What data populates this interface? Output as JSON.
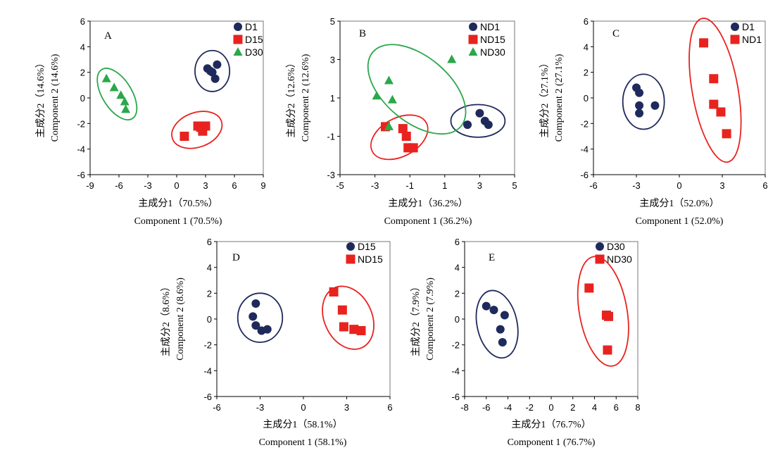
{
  "colors": {
    "circle": "#1f2a5c",
    "square": "#e8231f",
    "triangle": "#2aa84a",
    "ellipse_navy": "#1f2a5c",
    "ellipse_red": "#e8231f",
    "ellipse_green": "#2aa84a"
  },
  "chart_data": [
    {
      "type": "scatter",
      "panel_label": "A",
      "xlabel_cn": "主成分1（70.5%）",
      "xlabel_en": "Component 1 (70.5%)",
      "ylabel_cn": "主成分2（14.6%）",
      "ylabel_en": "Component 2 (14.6%)",
      "xlim": [
        -9,
        9
      ],
      "ylim": [
        -6,
        6
      ],
      "xticks": [
        "-9",
        "-6",
        "-3",
        "0",
        "3",
        "6",
        "9"
      ],
      "yticks": [
        "-6",
        "-4",
        "-2",
        "0",
        "2",
        "4",
        "6"
      ],
      "legend_position": "top-right",
      "series": [
        {
          "name": "D1",
          "marker": "circle",
          "points": [
            [
              3.2,
              2.3
            ],
            [
              3.7,
              2.0
            ],
            [
              4.2,
              2.6
            ],
            [
              4.0,
              1.5
            ],
            [
              3.5,
              2.1
            ]
          ]
        },
        {
          "name": "D15",
          "marker": "square",
          "points": [
            [
              0.8,
              -3.0
            ],
            [
              2.2,
              -2.2
            ],
            [
              2.7,
              -2.6
            ],
            [
              3.0,
              -2.2
            ],
            [
              2.5,
              -2.3
            ]
          ]
        },
        {
          "name": "D30",
          "marker": "triangle",
          "points": [
            [
              -7.3,
              1.5
            ],
            [
              -6.5,
              0.8
            ],
            [
              -5.8,
              0.2
            ],
            [
              -5.4,
              -0.3
            ],
            [
              -5.3,
              -0.9
            ]
          ]
        }
      ],
      "ellipses": [
        {
          "color": "navy",
          "cx": 3.7,
          "cy": 2.1,
          "rx": 1.8,
          "ry": 1.6,
          "angle": 0
        },
        {
          "color": "red",
          "cx": 2.1,
          "cy": -2.5,
          "rx": 2.7,
          "ry": 1.35,
          "angle": -20
        },
        {
          "color": "green",
          "cx": -6.2,
          "cy": 0.3,
          "rx": 3.0,
          "ry": 1.15,
          "angle": 58
        }
      ]
    },
    {
      "type": "scatter",
      "panel_label": "B",
      "xlabel_cn": "主成分1（36.2%）",
      "xlabel_en": "Component 1 (36.2%)",
      "ylabel_cn": "主成分2（12.6%）",
      "ylabel_en": "Component 2 (12.6%)",
      "xlim": [
        -5,
        5
      ],
      "ylim": [
        -3,
        5
      ],
      "xticks": [
        "-5",
        "-3",
        "-1",
        "1",
        "3",
        "5"
      ],
      "yticks": [
        "-3",
        "-1",
        "1",
        "3",
        "5"
      ],
      "legend_position": "top-right",
      "series": [
        {
          "name": "ND1",
          "marker": "circle",
          "points": [
            [
              2.3,
              -0.4
            ],
            [
              3.0,
              0.2
            ],
            [
              3.3,
              -0.2
            ],
            [
              3.5,
              -0.4
            ]
          ]
        },
        {
          "name": "ND15",
          "marker": "square",
          "points": [
            [
              -2.4,
              -0.5
            ],
            [
              -1.4,
              -0.6
            ],
            [
              -1.2,
              -1.0
            ],
            [
              -1.1,
              -1.6
            ],
            [
              -0.8,
              -1.6
            ]
          ]
        },
        {
          "name": "ND30",
          "marker": "triangle",
          "points": [
            [
              -2.2,
              1.9
            ],
            [
              -2.9,
              1.1
            ],
            [
              -2.0,
              0.9
            ],
            [
              -2.2,
              -0.5
            ],
            [
              1.4,
              3.0
            ]
          ]
        }
      ],
      "ellipses": [
        {
          "color": "navy",
          "cx": 2.9,
          "cy": -0.2,
          "rx": 1.55,
          "ry": 0.85,
          "angle": 0
        },
        {
          "color": "red",
          "cx": -1.6,
          "cy": -1.05,
          "rx": 1.75,
          "ry": 1.0,
          "angle": -28
        },
        {
          "color": "green",
          "cx": -0.6,
          "cy": 1.45,
          "rx": 3.3,
          "ry": 1.7,
          "angle": 40
        }
      ]
    },
    {
      "type": "scatter",
      "panel_label": "C",
      "xlabel_cn": "主成分1（52.0%）",
      "xlabel_en": "Component 1 (52.0%)",
      "ylabel_cn": "主成分2（27.1%）",
      "ylabel_en": "Component 2 (27.1%)",
      "xlim": [
        -6,
        6
      ],
      "ylim": [
        -6,
        6
      ],
      "xticks": [
        "-6",
        "-3",
        "0",
        "3",
        "6"
      ],
      "yticks": [
        "-6",
        "-4",
        "-2",
        "0",
        "2",
        "4",
        "6"
      ],
      "legend_position": "top-right",
      "series": [
        {
          "name": "D1",
          "marker": "circle",
          "points": [
            [
              -3.0,
              0.8
            ],
            [
              -2.8,
              0.4
            ],
            [
              -2.8,
              -0.6
            ],
            [
              -2.8,
              -1.2
            ],
            [
              -1.7,
              -0.6
            ]
          ]
        },
        {
          "name": "ND1",
          "marker": "square",
          "points": [
            [
              1.7,
              4.3
            ],
            [
              2.4,
              1.5
            ],
            [
              2.4,
              -0.5
            ],
            [
              2.9,
              -1.1
            ],
            [
              3.3,
              -2.8
            ]
          ]
        }
      ],
      "ellipses": [
        {
          "color": "navy",
          "cx": -2.5,
          "cy": -0.3,
          "rx": 1.45,
          "ry": 2.15,
          "angle": 0
        },
        {
          "color": "red",
          "cx": 2.5,
          "cy": 0.6,
          "rx": 1.6,
          "ry": 5.7,
          "angle": -10
        }
      ]
    },
    {
      "type": "scatter",
      "panel_label": "D",
      "xlabel_cn": "主成分1（58.1%）",
      "xlabel_en": "Component 1 (58.1%)",
      "ylabel_cn": "主成分2（8.6%）",
      "ylabel_en": "Component 2 (8.6%)",
      "xlim": [
        -6,
        6
      ],
      "ylim": [
        -6,
        6
      ],
      "xticks": [
        "-6",
        "-3",
        "0",
        "3",
        "6"
      ],
      "yticks": [
        "-6",
        "-4",
        "-2",
        "0",
        "2",
        "4",
        "6"
      ],
      "legend_position": "top-right",
      "series": [
        {
          "name": "D15",
          "marker": "circle",
          "points": [
            [
              -3.3,
              1.2
            ],
            [
              -3.5,
              0.2
            ],
            [
              -3.3,
              -0.5
            ],
            [
              -2.9,
              -0.9
            ],
            [
              -2.5,
              -0.8
            ]
          ]
        },
        {
          "name": "ND15",
          "marker": "square",
          "points": [
            [
              2.1,
              2.1
            ],
            [
              2.7,
              0.7
            ],
            [
              2.8,
              -0.6
            ],
            [
              3.5,
              -0.8
            ],
            [
              4.0,
              -0.9
            ]
          ]
        }
      ],
      "ellipses": [
        {
          "color": "navy",
          "cx": -3.0,
          "cy": 0.1,
          "rx": 1.55,
          "ry": 1.9,
          "angle": 0
        },
        {
          "color": "red",
          "cx": 3.1,
          "cy": 0.1,
          "rx": 1.65,
          "ry": 2.55,
          "angle": -25
        }
      ]
    },
    {
      "type": "scatter",
      "panel_label": "E",
      "xlabel_cn": "主成分1（76.7%）",
      "xlabel_en": "Component 1 (76.7%)",
      "ylabel_cn": "主成分2（7.9%）",
      "ylabel_en": "Component 2 (7.9%)",
      "xlim": [
        -8,
        8
      ],
      "ylim": [
        -6,
        6
      ],
      "xticks": [
        "-8",
        "-6",
        "-4",
        "-2",
        "0",
        "2",
        "4",
        "6",
        "8"
      ],
      "yticks": [
        "-6",
        "-4",
        "-2",
        "0",
        "2",
        "4",
        "6"
      ],
      "legend_position": "top-right",
      "series": [
        {
          "name": "D30",
          "marker": "circle",
          "points": [
            [
              -6.0,
              1.0
            ],
            [
              -5.3,
              0.7
            ],
            [
              -4.3,
              0.3
            ],
            [
              -4.7,
              -0.8
            ],
            [
              -4.5,
              -1.8
            ]
          ]
        },
        {
          "name": "ND30",
          "marker": "square",
          "points": [
            [
              3.5,
              2.4
            ],
            [
              5.1,
              0.3
            ],
            [
              5.3,
              0.2
            ],
            [
              5.2,
              -2.4
            ]
          ]
        }
      ],
      "ellipses": [
        {
          "color": "navy",
          "cx": -5.0,
          "cy": -0.4,
          "rx": 1.85,
          "ry": 2.65,
          "angle": -12
        },
        {
          "color": "red",
          "cx": 4.8,
          "cy": 0.6,
          "rx": 2.2,
          "ry": 4.3,
          "angle": -10
        }
      ]
    }
  ]
}
